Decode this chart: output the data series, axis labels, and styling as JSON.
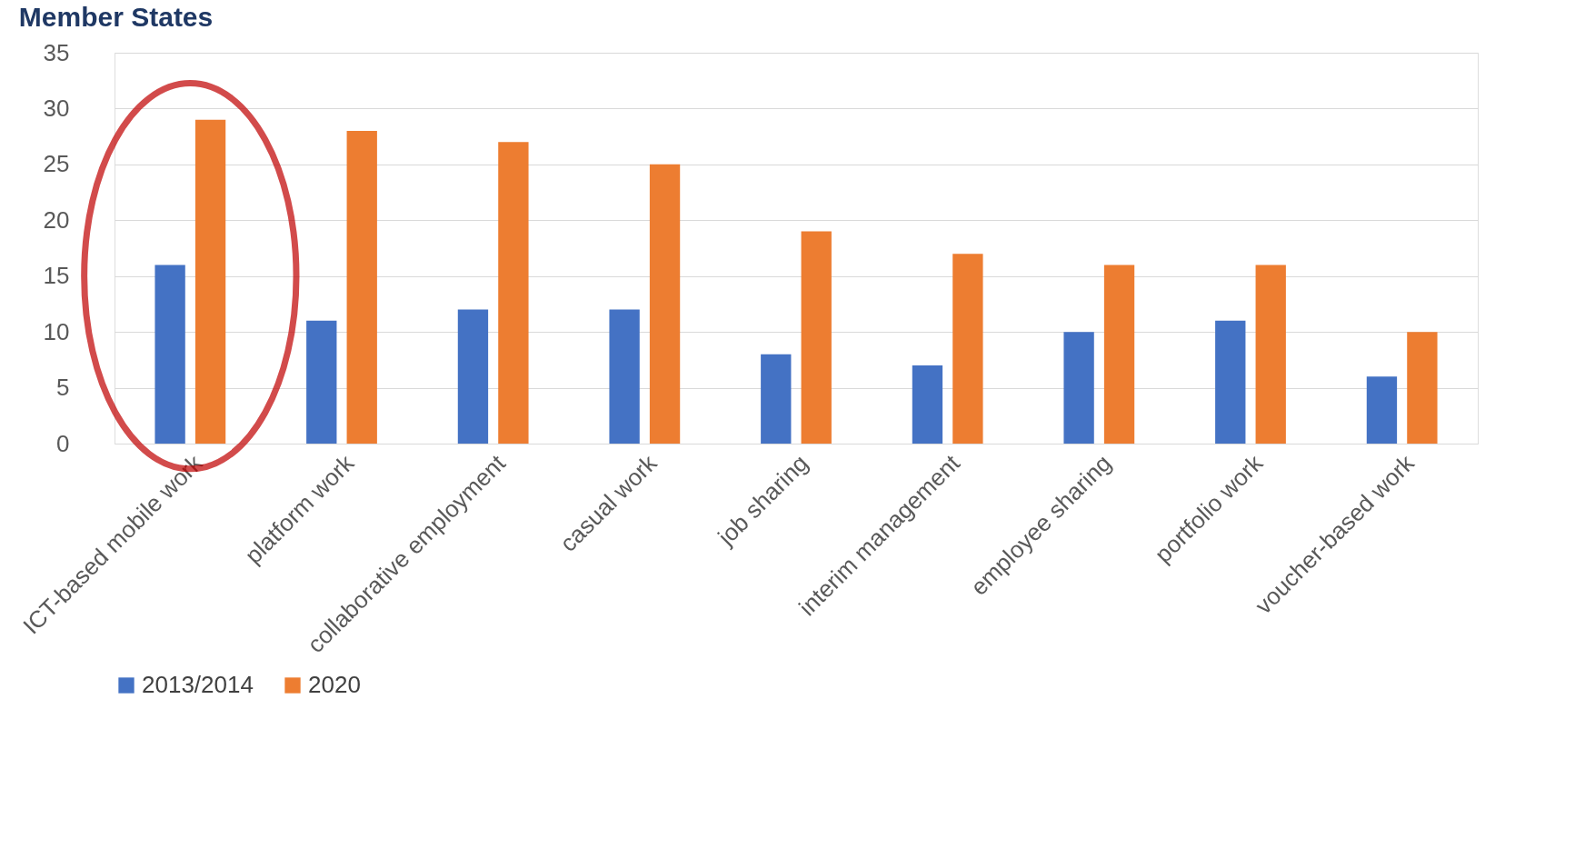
{
  "chart_data": {
    "type": "bar",
    "title": "Member States",
    "categories": [
      "ICT-based mobile work",
      "platform work",
      "collaborative employment",
      "casual work",
      "job sharing",
      "interim management",
      "employee sharing",
      "portfolio work",
      "voucher-based work"
    ],
    "series": [
      {
        "name": "2013/2014",
        "color": "#4472c4",
        "values": [
          16,
          11,
          12,
          12,
          8,
          7,
          10,
          11,
          6
        ]
      },
      {
        "name": "2020",
        "color": "#ed7d31",
        "values": [
          29,
          28,
          27,
          25,
          19,
          17,
          16,
          16,
          10
        ]
      }
    ],
    "ylim": [
      0,
      35
    ],
    "yticks": [
      0,
      5,
      10,
      15,
      20,
      25,
      30,
      35
    ],
    "grid": "y",
    "legend": "bottom"
  }
}
